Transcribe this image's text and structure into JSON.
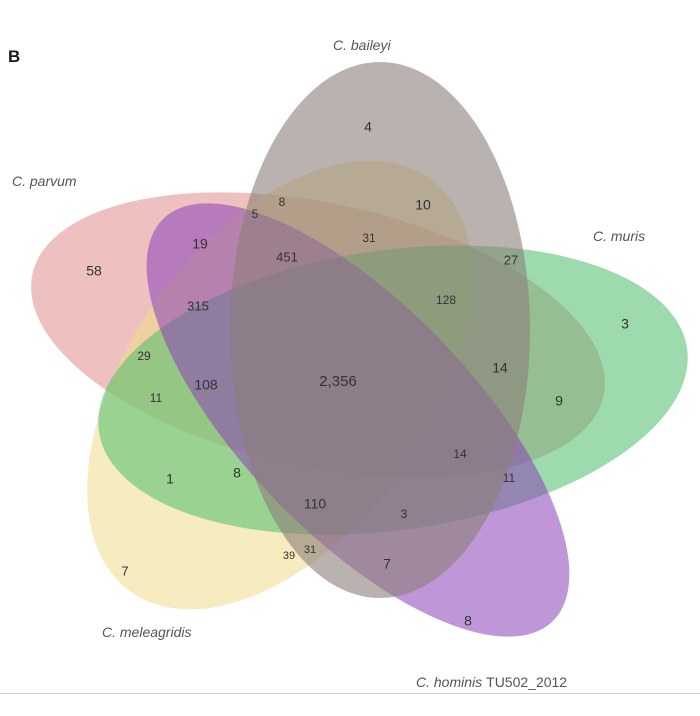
{
  "panel_label": "B",
  "sets": [
    {
      "id": "parvum",
      "name": "C. parvum",
      "color": "#e08c8c"
    },
    {
      "id": "baileyi",
      "name": "C. baileyi",
      "color": "#8c7f78"
    },
    {
      "id": "muris",
      "name": "C. muris",
      "color": "#4dbd6b"
    },
    {
      "id": "meleagridis",
      "name": "C. meleagridis",
      "color": "#eedc8a"
    },
    {
      "id": "hominis",
      "name": "C. hominis",
      "name_suffix": "TU502_2012",
      "color": "#8a3fb8"
    }
  ],
  "region_counts": [
    "58",
    "4",
    "3",
    "7",
    "8",
    "19",
    "5",
    "8",
    "10",
    "31",
    "451",
    "27",
    "128",
    "315",
    "29",
    "11",
    "108",
    "2,356",
    "14",
    "9",
    "14",
    "11",
    "1",
    "8",
    "110",
    "3",
    "39",
    "31",
    "7"
  ]
}
